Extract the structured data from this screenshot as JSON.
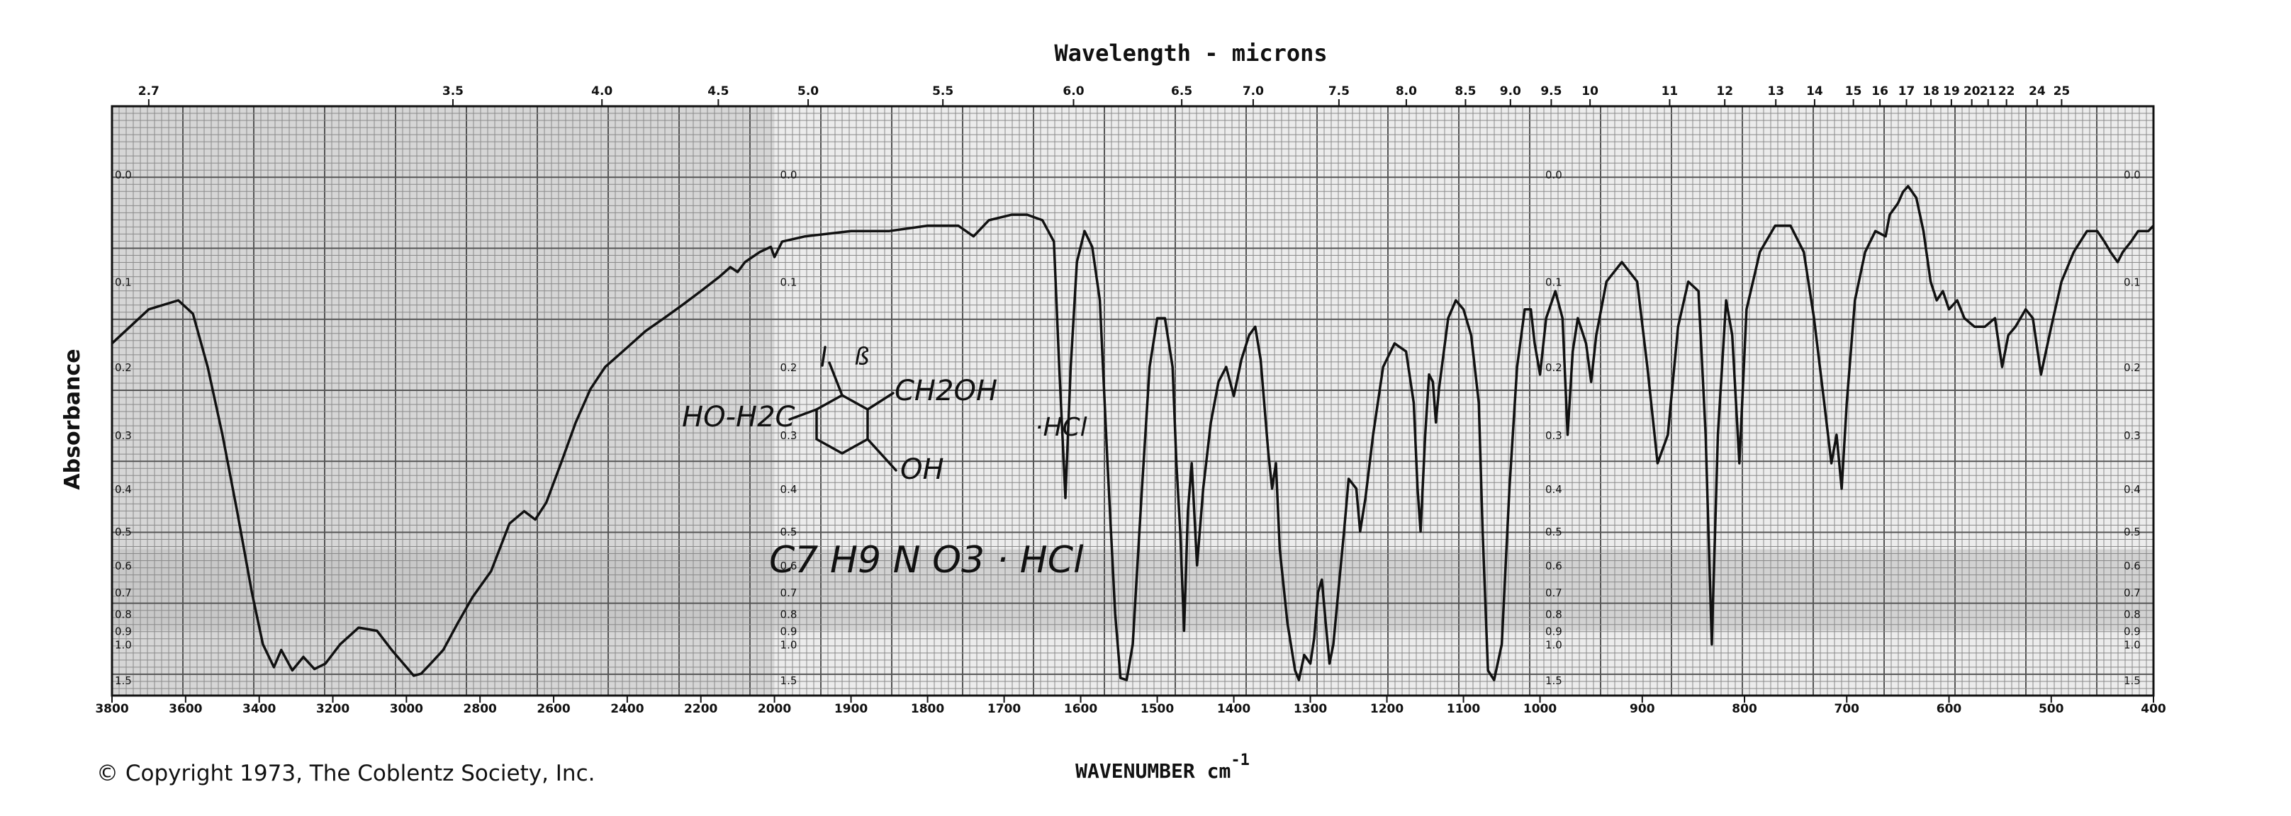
{
  "chart_data": {
    "type": "line",
    "title": "Wavelength - microns",
    "xlabel": "WAVENUMBER cm",
    "xlabel_sup": "-1",
    "ylabel": "Absorbance",
    "x_range_cm1": [
      3800,
      400
    ],
    "x_axis_breaks_cm1": [
      2000,
      1000
    ],
    "y_scale": "absorbance (log)",
    "y_range": [
      0.0,
      1.5
    ],
    "grid": true,
    "copyright": "© Copyright 1973, The Coblentz Society, Inc.",
    "annotations": {
      "left_group": "HO-H2C",
      "right_group": "CH2OH",
      "ortho_group": "OH",
      "formula_line": "C7 H9 N O3 · HCl",
      "side_mark": "·HCl"
    },
    "top_tick_labels": [
      "2.7",
      "3.5",
      "4.0",
      "4.5",
      "5.0",
      "5.5",
      "6.0",
      "6.5",
      "7.0",
      "7.5",
      "8.0",
      "8.5",
      "9.0",
      "9.5",
      "10",
      "11",
      "12",
      "13",
      "14",
      "15",
      "16",
      "17",
      "18",
      "19",
      "20",
      "21",
      "22",
      "24",
      "25"
    ],
    "bottom_tick_labels": [
      "3800",
      "3600",
      "3400",
      "3200",
      "3000",
      "2800",
      "2600",
      "2400",
      "2200",
      "2000",
      "1900",
      "1800",
      "1700",
      "1600",
      "1500",
      "1400",
      "1300",
      "1200",
      "1100",
      "1000",
      "900",
      "800",
      "700",
      "600",
      "500",
      "400"
    ],
    "absorbance_labels": [
      "0.0",
      "0.1",
      "0.2",
      "0.3",
      "0.4",
      "0.5",
      "0.6",
      "0.7",
      "0.8",
      "0.9",
      "1.0",
      "1.5"
    ],
    "series": [
      {
        "points": [
          [
            3800,
            0.17
          ],
          [
            3700,
            0.13
          ],
          [
            3620,
            0.12
          ],
          [
            3580,
            0.135
          ],
          [
            3540,
            0.2
          ],
          [
            3500,
            0.3
          ],
          [
            3460,
            0.45
          ],
          [
            3420,
            0.7
          ],
          [
            3390,
            1.0
          ],
          [
            3360,
            1.25
          ],
          [
            3340,
            1.05
          ],
          [
            3310,
            1.3
          ],
          [
            3280,
            1.12
          ],
          [
            3250,
            1.28
          ],
          [
            3220,
            1.2
          ],
          [
            3180,
            1.0
          ],
          [
            3130,
            0.88
          ],
          [
            3080,
            0.9
          ],
          [
            3040,
            1.05
          ],
          [
            3000,
            1.25
          ],
          [
            2980,
            1.4
          ],
          [
            2960,
            1.36
          ],
          [
            2930,
            1.18
          ],
          [
            2900,
            1.05
          ],
          [
            2860,
            0.85
          ],
          [
            2820,
            0.72
          ],
          [
            2770,
            0.62
          ],
          [
            2720,
            0.48
          ],
          [
            2680,
            0.45
          ],
          [
            2650,
            0.47
          ],
          [
            2620,
            0.43
          ],
          [
            2580,
            0.35
          ],
          [
            2540,
            0.28
          ],
          [
            2500,
            0.23
          ],
          [
            2460,
            0.2
          ],
          [
            2400,
            0.175
          ],
          [
            2350,
            0.155
          ],
          [
            2300,
            0.14
          ],
          [
            2250,
            0.125
          ],
          [
            2200,
            0.11
          ],
          [
            2150,
            0.095
          ],
          [
            2120,
            0.085
          ],
          [
            2100,
            0.09
          ],
          [
            2080,
            0.08
          ],
          [
            2040,
            0.07
          ],
          [
            2010,
            0.065
          ],
          [
            2000,
            0.075
          ],
          [
            1990,
            0.06
          ],
          [
            1960,
            0.055
          ],
          [
            1900,
            0.05
          ],
          [
            1850,
            0.05
          ],
          [
            1800,
            0.045
          ],
          [
            1760,
            0.045
          ],
          [
            1740,
            0.055
          ],
          [
            1720,
            0.04
          ],
          [
            1690,
            0.035
          ],
          [
            1670,
            0.035
          ],
          [
            1650,
            0.04
          ],
          [
            1635,
            0.06
          ],
          [
            1628,
            0.2
          ],
          [
            1620,
            0.42
          ],
          [
            1613,
            0.2
          ],
          [
            1605,
            0.08
          ],
          [
            1595,
            0.05
          ],
          [
            1585,
            0.065
          ],
          [
            1575,
            0.12
          ],
          [
            1565,
            0.35
          ],
          [
            1555,
            0.8
          ],
          [
            1548,
            1.45
          ],
          [
            1540,
            1.5
          ],
          [
            1532,
            1.0
          ],
          [
            1520,
            0.4
          ],
          [
            1510,
            0.2
          ],
          [
            1500,
            0.14
          ],
          [
            1490,
            0.14
          ],
          [
            1480,
            0.2
          ],
          [
            1475,
            0.35
          ],
          [
            1470,
            0.5
          ],
          [
            1465,
            0.9
          ],
          [
            1460,
            0.45
          ],
          [
            1455,
            0.35
          ],
          [
            1448,
            0.6
          ],
          [
            1440,
            0.4
          ],
          [
            1430,
            0.28
          ],
          [
            1420,
            0.22
          ],
          [
            1410,
            0.2
          ],
          [
            1400,
            0.24
          ],
          [
            1390,
            0.19
          ],
          [
            1380,
            0.16
          ],
          [
            1372,
            0.15
          ],
          [
            1365,
            0.19
          ],
          [
            1355,
            0.33
          ],
          [
            1350,
            0.4
          ],
          [
            1345,
            0.35
          ],
          [
            1340,
            0.55
          ],
          [
            1330,
            0.85
          ],
          [
            1320,
            1.3
          ],
          [
            1315,
            1.5
          ],
          [
            1308,
            1.1
          ],
          [
            1300,
            1.2
          ],
          [
            1295,
            0.95
          ],
          [
            1290,
            0.7
          ],
          [
            1285,
            0.65
          ],
          [
            1280,
            0.85
          ],
          [
            1275,
            1.2
          ],
          [
            1270,
            1.0
          ],
          [
            1262,
            0.65
          ],
          [
            1256,
            0.5
          ],
          [
            1250,
            0.38
          ],
          [
            1240,
            0.4
          ],
          [
            1235,
            0.5
          ],
          [
            1228,
            0.42
          ],
          [
            1218,
            0.3
          ],
          [
            1205,
            0.2
          ],
          [
            1190,
            0.17
          ],
          [
            1175,
            0.18
          ],
          [
            1165,
            0.25
          ],
          [
            1160,
            0.4
          ],
          [
            1156,
            0.5
          ],
          [
            1150,
            0.3
          ],
          [
            1145,
            0.21
          ],
          [
            1140,
            0.22
          ],
          [
            1136,
            0.28
          ],
          [
            1132,
            0.23
          ],
          [
            1120,
            0.14
          ],
          [
            1110,
            0.12
          ],
          [
            1100,
            0.13
          ],
          [
            1090,
            0.16
          ],
          [
            1080,
            0.25
          ],
          [
            1075,
            0.5
          ],
          [
            1068,
            1.3
          ],
          [
            1060,
            1.5
          ],
          [
            1050,
            1.0
          ],
          [
            1040,
            0.4
          ],
          [
            1030,
            0.2
          ],
          [
            1020,
            0.13
          ],
          [
            1012,
            0.13
          ],
          [
            1007,
            0.17
          ],
          [
            1000,
            0.21
          ],
          [
            994,
            0.14
          ],
          [
            985,
            0.11
          ],
          [
            978,
            0.14
          ],
          [
            973,
            0.3
          ],
          [
            968,
            0.18
          ],
          [
            963,
            0.14
          ],
          [
            955,
            0.17
          ],
          [
            950,
            0.22
          ],
          [
            945,
            0.16
          ],
          [
            935,
            0.1
          ],
          [
            920,
            0.08
          ],
          [
            905,
            0.1
          ],
          [
            895,
            0.2
          ],
          [
            885,
            0.35
          ],
          [
            875,
            0.3
          ],
          [
            865,
            0.15
          ],
          [
            855,
            0.1
          ],
          [
            845,
            0.11
          ],
          [
            838,
            0.3
          ],
          [
            832,
            1.0
          ],
          [
            826,
            0.3
          ],
          [
            818,
            0.12
          ],
          [
            812,
            0.16
          ],
          [
            805,
            0.35
          ],
          [
            798,
            0.13
          ],
          [
            785,
            0.07
          ],
          [
            770,
            0.045
          ],
          [
            755,
            0.045
          ],
          [
            742,
            0.07
          ],
          [
            732,
            0.14
          ],
          [
            722,
            0.25
          ],
          [
            715,
            0.35
          ],
          [
            710,
            0.3
          ],
          [
            705,
            0.4
          ],
          [
            700,
            0.25
          ],
          [
            692,
            0.12
          ],
          [
            682,
            0.07
          ],
          [
            672,
            0.05
          ],
          [
            662,
            0.055
          ],
          [
            658,
            0.035
          ],
          [
            650,
            0.025
          ],
          [
            645,
            0.015
          ],
          [
            640,
            0.01
          ],
          [
            632,
            0.02
          ],
          [
            625,
            0.05
          ],
          [
            618,
            0.1
          ],
          [
            612,
            0.12
          ],
          [
            606,
            0.11
          ],
          [
            600,
            0.13
          ],
          [
            592,
            0.12
          ],
          [
            585,
            0.14
          ],
          [
            575,
            0.15
          ],
          [
            565,
            0.15
          ],
          [
            555,
            0.14
          ],
          [
            548,
            0.2
          ],
          [
            542,
            0.16
          ],
          [
            535,
            0.15
          ],
          [
            525,
            0.13
          ],
          [
            518,
            0.14
          ],
          [
            510,
            0.21
          ],
          [
            500,
            0.15
          ],
          [
            490,
            0.1
          ],
          [
            478,
            0.07
          ],
          [
            465,
            0.05
          ],
          [
            455,
            0.05
          ],
          [
            448,
            0.06
          ],
          [
            442,
            0.07
          ],
          [
            435,
            0.08
          ],
          [
            430,
            0.07
          ],
          [
            422,
            0.06
          ],
          [
            415,
            0.05
          ],
          [
            405,
            0.05
          ],
          [
            400,
            0.045
          ]
        ]
      }
    ]
  }
}
